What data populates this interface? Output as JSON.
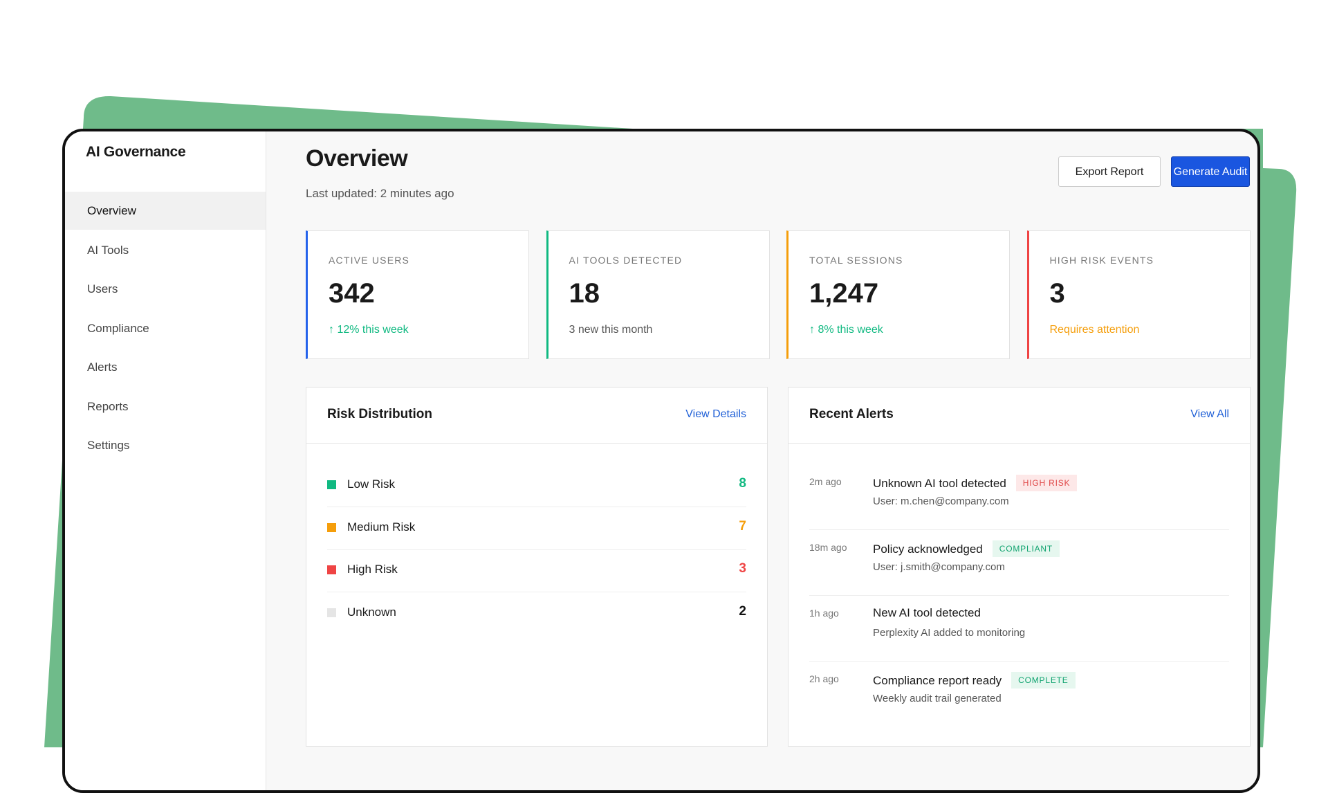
{
  "sidebar": {
    "brand": "AI Governance",
    "nav": [
      "Overview",
      "AI Tools",
      "Users",
      "Compliance",
      "Alerts",
      "Reports",
      "Settings"
    ]
  },
  "header": {
    "title": "Overview",
    "subtitle": "Last updated: 2 minutes ago",
    "buttons": [
      "Export Report",
      "Generate Audit"
    ]
  },
  "stats": [
    {
      "label": "ACTIVE USERS",
      "value": "342",
      "note": "↑ 12% this week"
    },
    {
      "label": "AI TOOLS DETECTED",
      "value": "18",
      "note": "3 new this month"
    },
    {
      "label": "TOTAL SESSIONS",
      "value": "1,247",
      "note": "↑ 8% this week"
    },
    {
      "label": "HIGH RISK EVENTS",
      "value": "3",
      "note": "Requires attention"
    }
  ],
  "risk": {
    "title": "Risk Distribution",
    "link": "View Details",
    "rows": [
      {
        "label": "Low Risk",
        "count": 8
      },
      {
        "label": "Medium Risk",
        "count": 7
      },
      {
        "label": "High Risk",
        "count": 3
      },
      {
        "label": "Unknown",
        "count": 2
      }
    ]
  },
  "alerts": {
    "title": "Recent Alerts",
    "link": "View All",
    "items": [
      {
        "time": "2m ago",
        "title": "Unknown AI tool detected",
        "badge": "HIGH RISK",
        "detail": "User: m.chen@company.com"
      },
      {
        "time": "18m ago",
        "title": "Policy acknowledged",
        "badge": "COMPLIANT",
        "detail": "User: j.smith@company.com"
      },
      {
        "time": "1h ago",
        "title": "New AI tool detected",
        "detail": "Perplexity AI added to monitoring"
      },
      {
        "time": "2h ago",
        "title": "Compliance report ready",
        "badge": "COMPLETE",
        "detail": "Weekly audit trail generated"
      }
    ]
  }
}
